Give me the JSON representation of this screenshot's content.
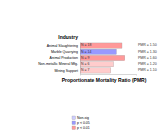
{
  "chart_data": {
    "type": "bar",
    "orientation": "horizontal",
    "title": "Industry",
    "x_label": "Proportionate Mortality Ratio (PMR)",
    "categories": [
      "Animal Slaughtering",
      "Marble Quarrying",
      "Animal Production",
      "Non-metallic Mineral Mfg.",
      "Mining Support"
    ],
    "values": [
      1.5,
      1.3,
      1.6,
      1.2,
      1.1
    ],
    "value_labels": [
      "PMR = 1.50",
      "PMR = 1.30",
      "PMR = 1.60",
      "PMR = 1.20",
      "PMR = 1.10"
    ],
    "n": [
      18,
      14,
      9,
      6,
      7
    ],
    "n_labels": [
      "N = 18",
      "N = 14",
      "N = 9",
      "N = 6",
      "N = 7"
    ],
    "colors": [
      "#ff9999",
      "#9999ff",
      "#ff9999",
      "#ffcccc",
      "#ffcccc"
    ],
    "data_labels": true,
    "xlim": [
      0,
      2
    ],
    "tick_labels": "y",
    "legend": "bottom",
    "legend_entries": [
      {
        "name": "Non-sig",
        "color": "#ccccff"
      },
      {
        "name": "p < 0.05",
        "color": "#9999ff"
      },
      {
        "name": "p < 0.01",
        "color": "#ff9999"
      }
    ]
  }
}
